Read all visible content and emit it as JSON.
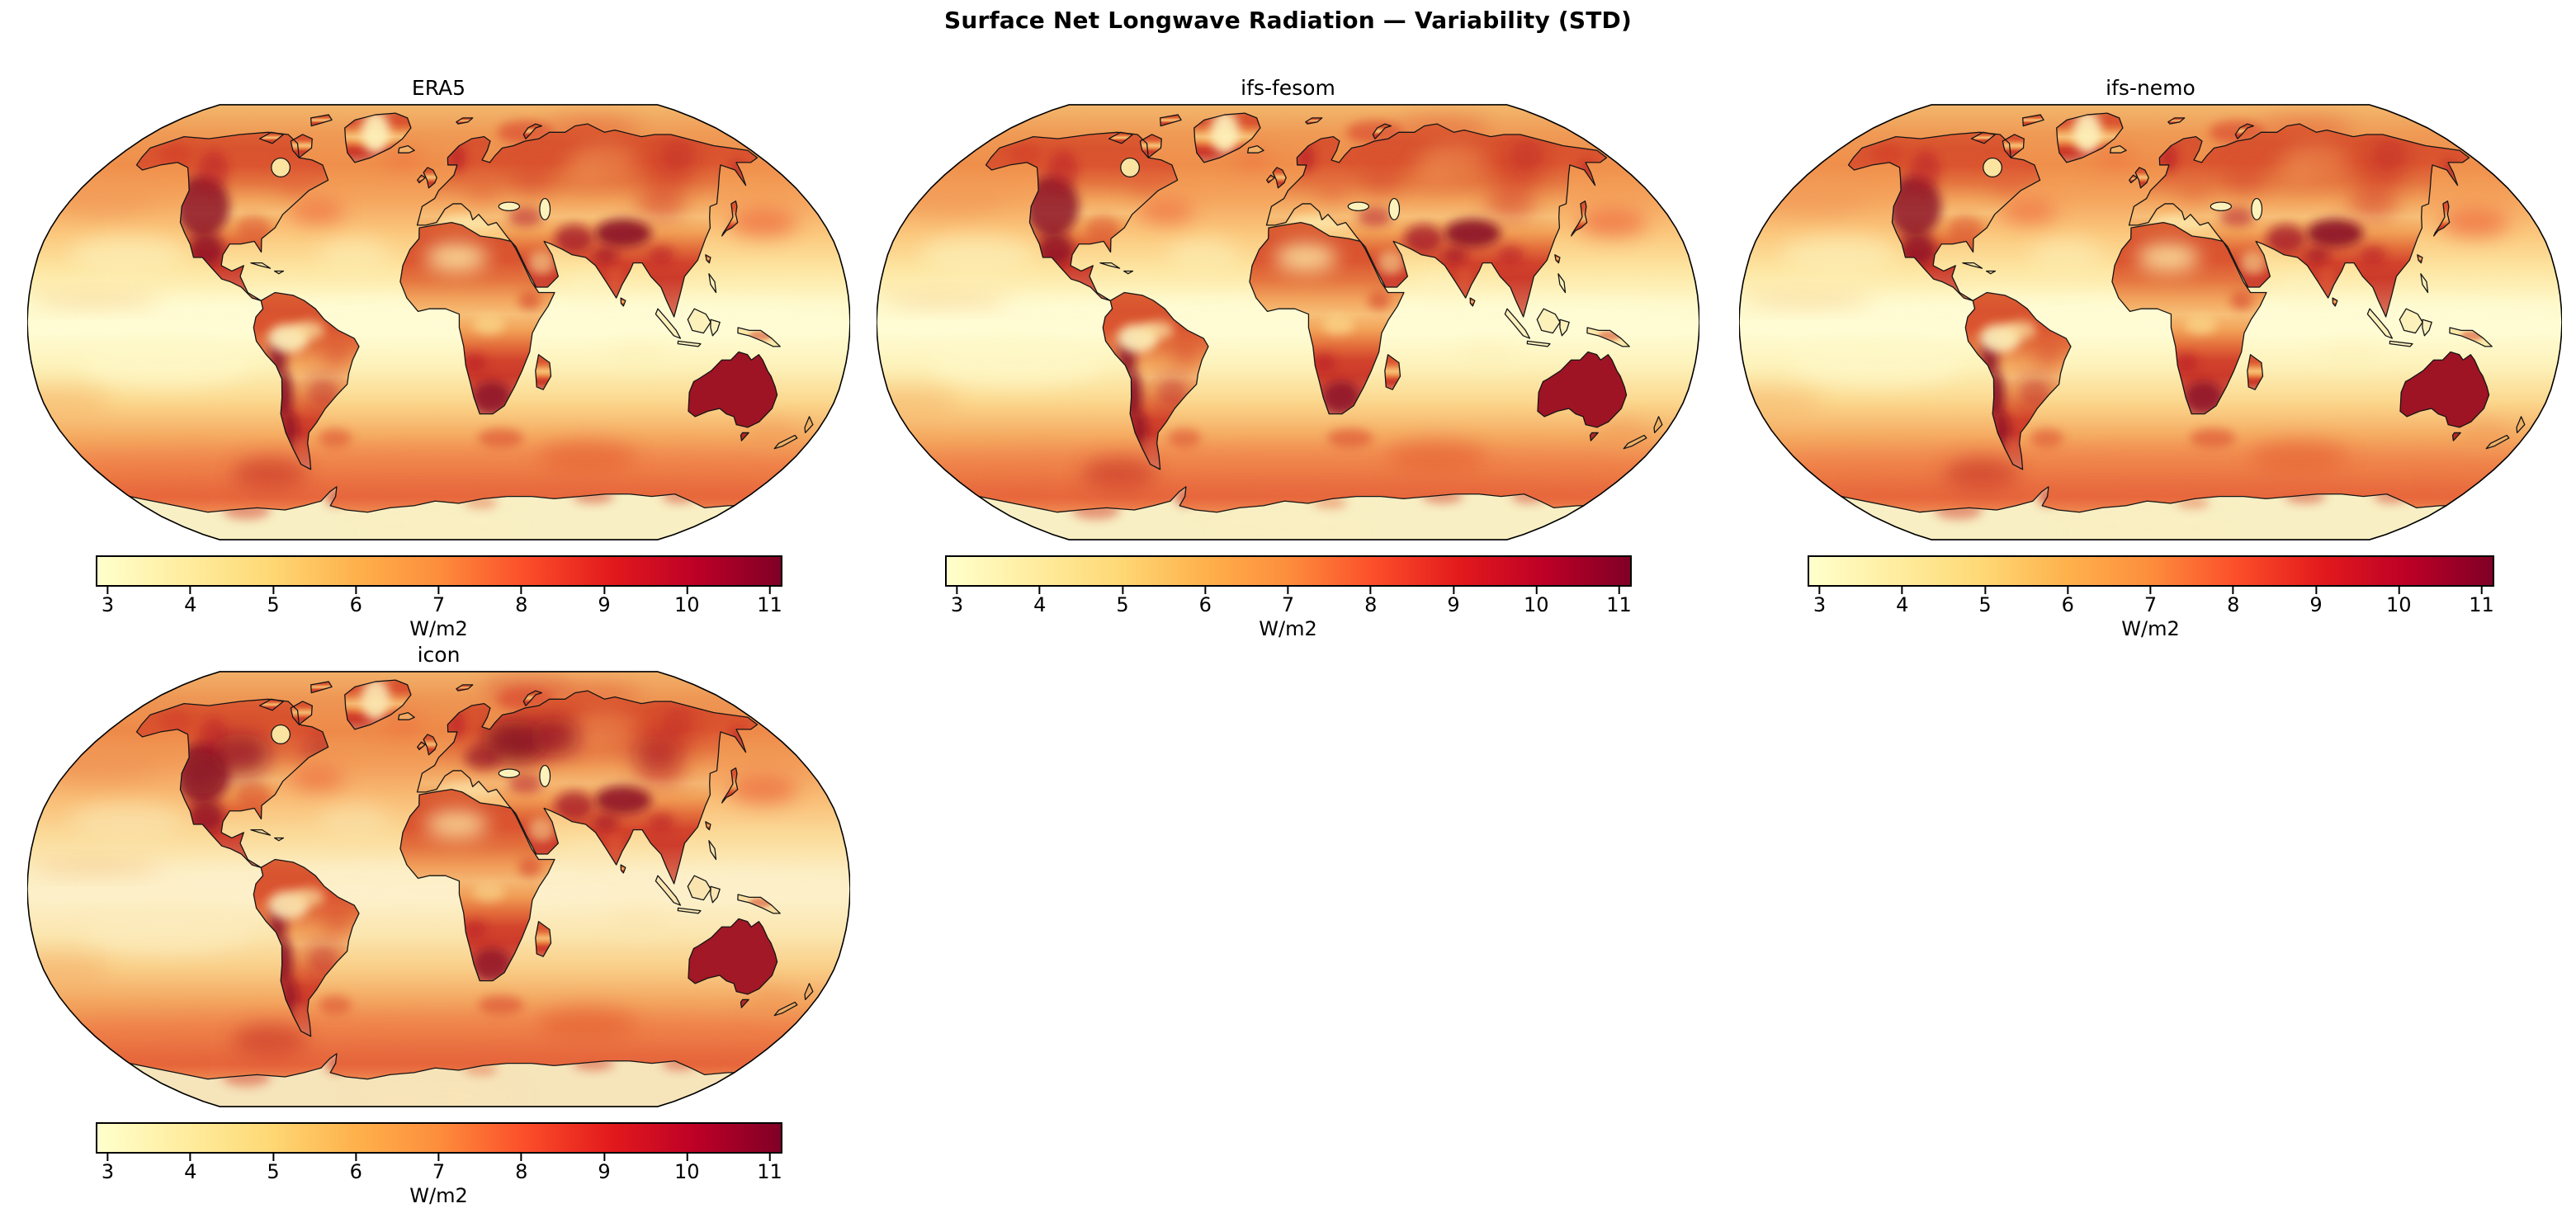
{
  "figure": {
    "title": "Surface Net Longwave Radiation — Variability (STD)",
    "background_color": "#ffffff",
    "text_color": "#000000"
  },
  "panels": [
    {
      "id": "era5",
      "title": "ERA5",
      "variant": "base"
    },
    {
      "id": "ifs-fesom",
      "title": "ifs-fesom",
      "variant": "base"
    },
    {
      "id": "ifs-nemo",
      "title": "ifs-nemo",
      "variant": "base"
    },
    {
      "id": "icon",
      "title": "icon",
      "variant": "dark-north"
    }
  ],
  "colorbar": {
    "label": "W/m2",
    "ticks": [
      "3",
      "4",
      "5",
      "6",
      "7",
      "8",
      "9",
      "10",
      "11"
    ],
    "vmin": 3,
    "vmax": 11,
    "colormap": "YlOrRd",
    "gradient_stops": [
      "#ffffcc",
      "#ffeda0",
      "#fed976",
      "#feb24c",
      "#fd8d3c",
      "#fc4e2a",
      "#e31a1c",
      "#bd0026",
      "#800026"
    ],
    "border_color": "#000000"
  },
  "chart_data": {
    "type": "heatmap",
    "title": "Surface Net Longwave Radiation — Variability (STD)",
    "units": "W/m2",
    "projection": "Robinson",
    "colormap": "YlOrRd",
    "colorbar_ticks": [
      3,
      4,
      5,
      6,
      7,
      8,
      9,
      10,
      11
    ],
    "value_range": [
      3,
      11
    ],
    "grid": {
      "rows": 2,
      "cols": 3,
      "occupied_cells": [
        [
          0,
          0
        ],
        [
          0,
          1
        ],
        [
          0,
          2
        ],
        [
          1,
          0
        ]
      ]
    },
    "panels": [
      {
        "title": "ERA5",
        "approx_values_wm2": {
          "equatorial_oceans": 3.2,
          "subtropical_oceans": 4.0,
          "midlatitude_oceans": 5.5,
          "southern_ocean_storm_track": 7.5,
          "se_pacific_drake_passage": 9.5,
          "kuroshio_gulf_stream": 8.0,
          "arctic_ocean": 6.5,
          "barents_kara_seas": 9.0,
          "mediterranean": 4.0,
          "sahara": 4.5,
          "amazon_west": 3.5,
          "congo_basin": 5.0,
          "australia_interior": 11.0,
          "western_north_america": 10.5,
          "mexico": 10.5,
          "andes": 10.5,
          "southern_africa": 10.0,
          "tibetan_plateau": 11.0,
          "middle_east": 9.5,
          "eastern_europe": 8.0,
          "siberia_interior": 7.0,
          "india_northwest": 9.5,
          "greenland_interior": 4.5,
          "antarctica_interior": 4.0,
          "antarctica_coast": 8.5
        }
      },
      {
        "title": "ifs-fesom",
        "approx_values_wm2": {
          "equatorial_oceans": 3.2,
          "subtropical_oceans": 4.0,
          "midlatitude_oceans": 5.5,
          "southern_ocean_storm_track": 7.0,
          "se_pacific_drake_passage": 9.0,
          "kuroshio_gulf_stream": 8.0,
          "arctic_ocean": 6.0,
          "barents_kara_seas": 8.5,
          "mediterranean": 4.5,
          "sahara": 4.5,
          "amazon_west": 3.5,
          "congo_basin": 5.5,
          "australia_interior": 11.0,
          "western_north_america": 10.5,
          "mexico": 10.0,
          "andes": 10.5,
          "southern_africa": 10.5,
          "tibetan_plateau": 10.5,
          "middle_east": 9.5,
          "eastern_europe": 8.0,
          "siberia_interior": 7.5,
          "india_northwest": 9.5,
          "greenland_interior": 4.5,
          "antarctica_interior": 4.5,
          "antarctica_coast": 8.5
        }
      },
      {
        "title": "ifs-nemo",
        "approx_values_wm2": {
          "equatorial_oceans": 3.2,
          "subtropical_oceans": 4.0,
          "midlatitude_oceans": 5.5,
          "southern_ocean_storm_track": 7.0,
          "se_pacific_drake_passage": 9.0,
          "kuroshio_gulf_stream": 8.0,
          "arctic_ocean": 6.0,
          "barents_kara_seas": 8.5,
          "mediterranean": 4.5,
          "sahara": 4.5,
          "amazon_west": 3.5,
          "congo_basin": 5.5,
          "australia_interior": 11.0,
          "western_north_america": 10.5,
          "mexico": 10.0,
          "andes": 10.5,
          "southern_africa": 10.5,
          "tibetan_plateau": 10.5,
          "middle_east": 9.5,
          "eastern_europe": 8.0,
          "siberia_interior": 7.5,
          "india_northwest": 9.5,
          "greenland_interior": 4.5,
          "antarctica_interior": 4.5,
          "antarctica_coast": 8.5
        }
      },
      {
        "title": "icon",
        "approx_values_wm2": {
          "equatorial_oceans": 3.5,
          "subtropical_oceans": 4.5,
          "midlatitude_oceans": 6.0,
          "southern_ocean_storm_track": 7.5,
          "se_pacific_drake_passage": 9.0,
          "kuroshio_gulf_stream": 8.5,
          "arctic_ocean": 7.0,
          "barents_kara_seas": 9.0,
          "mediterranean": 5.0,
          "sahara": 6.0,
          "amazon_west": 4.5,
          "congo_basin": 6.5,
          "australia_interior": 11.0,
          "western_north_america": 10.5,
          "mexico": 10.0,
          "andes": 10.5,
          "southern_africa": 10.0,
          "tibetan_plateau": 11.0,
          "middle_east": 10.0,
          "eastern_europe_western_russia": 11.0,
          "north_america_boreal": 10.5,
          "europe_central": 10.0,
          "siberia_interior": 8.5,
          "india_northwest": 9.5,
          "greenland_interior": 5.0,
          "antarctica_interior": 4.5,
          "antarctica_coast": 8.5
        }
      }
    ]
  }
}
